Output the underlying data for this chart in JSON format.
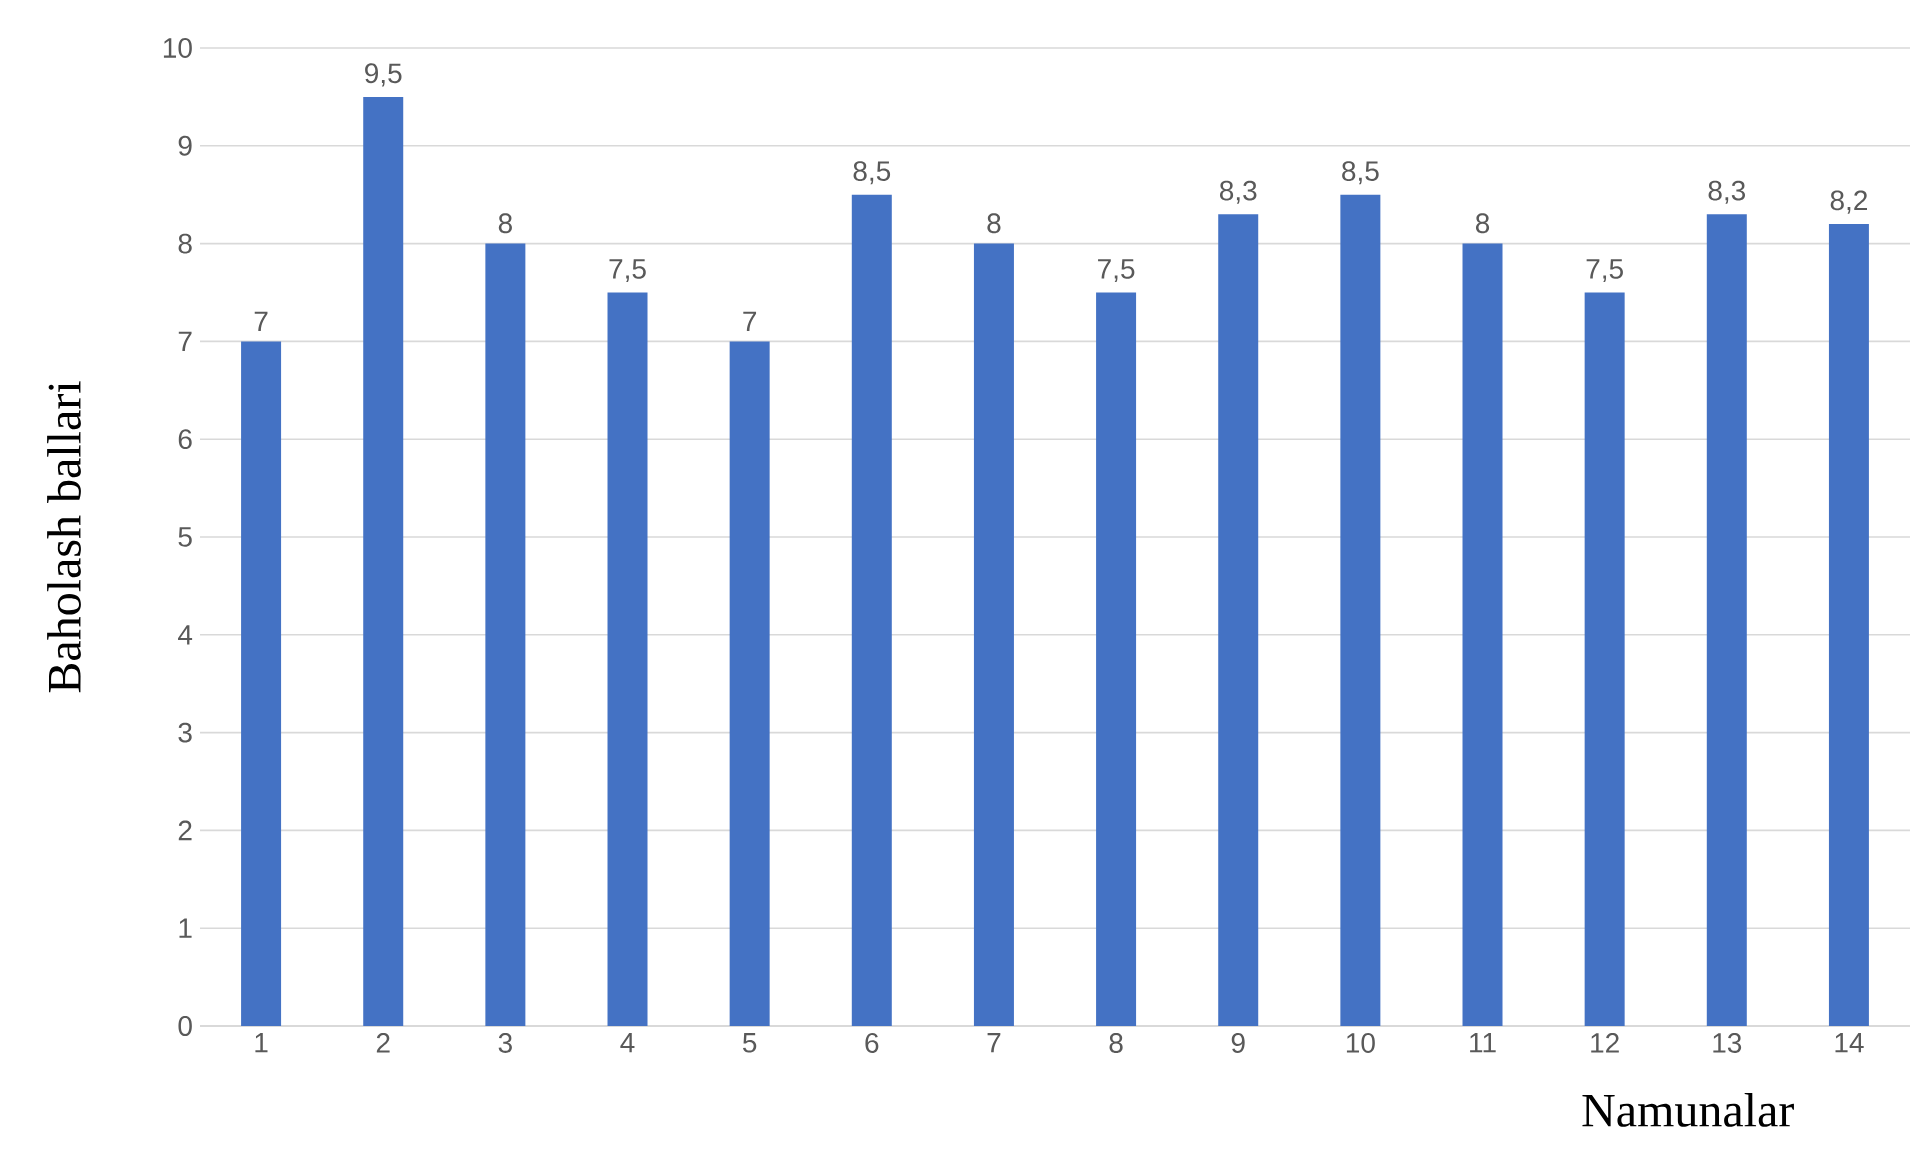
{
  "chart_data": {
    "type": "bar",
    "xlabel": "Namunalar",
    "ylabel": "Baholash ballari",
    "categories": [
      "1",
      "2",
      "3",
      "4",
      "5",
      "6",
      "7",
      "8",
      "9",
      "10",
      "11",
      "12",
      "13",
      "14"
    ],
    "values": [
      7,
      9.5,
      8,
      7.5,
      7,
      8.5,
      8,
      7.5,
      8.3,
      8.5,
      8,
      7.5,
      8.3,
      8.2
    ],
    "value_labels": [
      "7",
      "9,5",
      "8",
      "7,5",
      "7",
      "8,5",
      "8",
      "7,5",
      "8,3",
      "8,5",
      "8",
      "7,5",
      "8,3",
      "8,2"
    ],
    "color": "#4472c4",
    "ylim": [
      0,
      10
    ],
    "yticks": [
      0,
      1,
      2,
      3,
      4,
      5,
      6,
      7,
      8,
      9,
      10
    ],
    "grid": "y"
  }
}
